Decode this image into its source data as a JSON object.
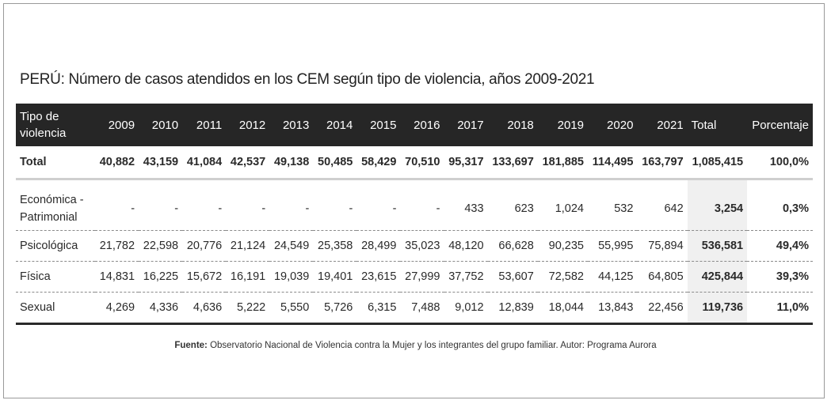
{
  "title": "PERÚ: Número de casos atendidos en los CEM según tipo de violencia, años 2009-2021",
  "table": {
    "header": {
      "type_label": "Tipo de violencia",
      "years": [
        "2009",
        "2010",
        "2011",
        "2012",
        "2013",
        "2014",
        "2015",
        "2016",
        "2017",
        "2018",
        "2019",
        "2020",
        "2021"
      ],
      "total": "Total",
      "percent": "Porcentaje"
    },
    "total_row": {
      "label": "Total",
      "values": [
        "40,882",
        "43,159",
        "41,084",
        "42,537",
        "49,138",
        "50,485",
        "58,429",
        "70,510",
        "95,317",
        "133,697",
        "181,885",
        "114,495",
        "163,797"
      ],
      "total": "1,085,415",
      "percent": "100,0%"
    },
    "rows": [
      {
        "label_line1": "Económica -",
        "label_line2": "Patrimonial",
        "values": [
          "-",
          "-",
          "-",
          "-",
          "-",
          "-",
          "-",
          "-",
          "433",
          "623",
          "1,024",
          "532",
          "642"
        ],
        "total": "3,254",
        "percent": "0,3%"
      },
      {
        "label": "Psicológica",
        "values": [
          "21,782",
          "22,598",
          "20,776",
          "21,124",
          "24,549",
          "25,358",
          "28,499",
          "35,023",
          "48,120",
          "66,628",
          "90,235",
          "55,995",
          "75,894"
        ],
        "total": "536,581",
        "percent": "49,4%"
      },
      {
        "label": "Física",
        "values": [
          "14,831",
          "16,225",
          "15,672",
          "16,191",
          "19,039",
          "19,401",
          "23,615",
          "27,999",
          "37,752",
          "53,607",
          "72,582",
          "44,125",
          "64,805"
        ],
        "total": "425,844",
        "percent": "39,3%"
      },
      {
        "label": "Sexual",
        "values": [
          "4,269",
          "4,336",
          "4,636",
          "5,222",
          "5,550",
          "5,726",
          "6,315",
          "7,488",
          "9,012",
          "12,839",
          "18,044",
          "13,843",
          "22,456"
        ],
        "total": "119,736",
        "percent": "11,0%"
      }
    ]
  },
  "source": {
    "label": "Fuente:",
    "text": " Observatorio Nacional de Violencia contra la Mujer y los integrantes del grupo familiar. Autor: Programa Aurora"
  }
}
